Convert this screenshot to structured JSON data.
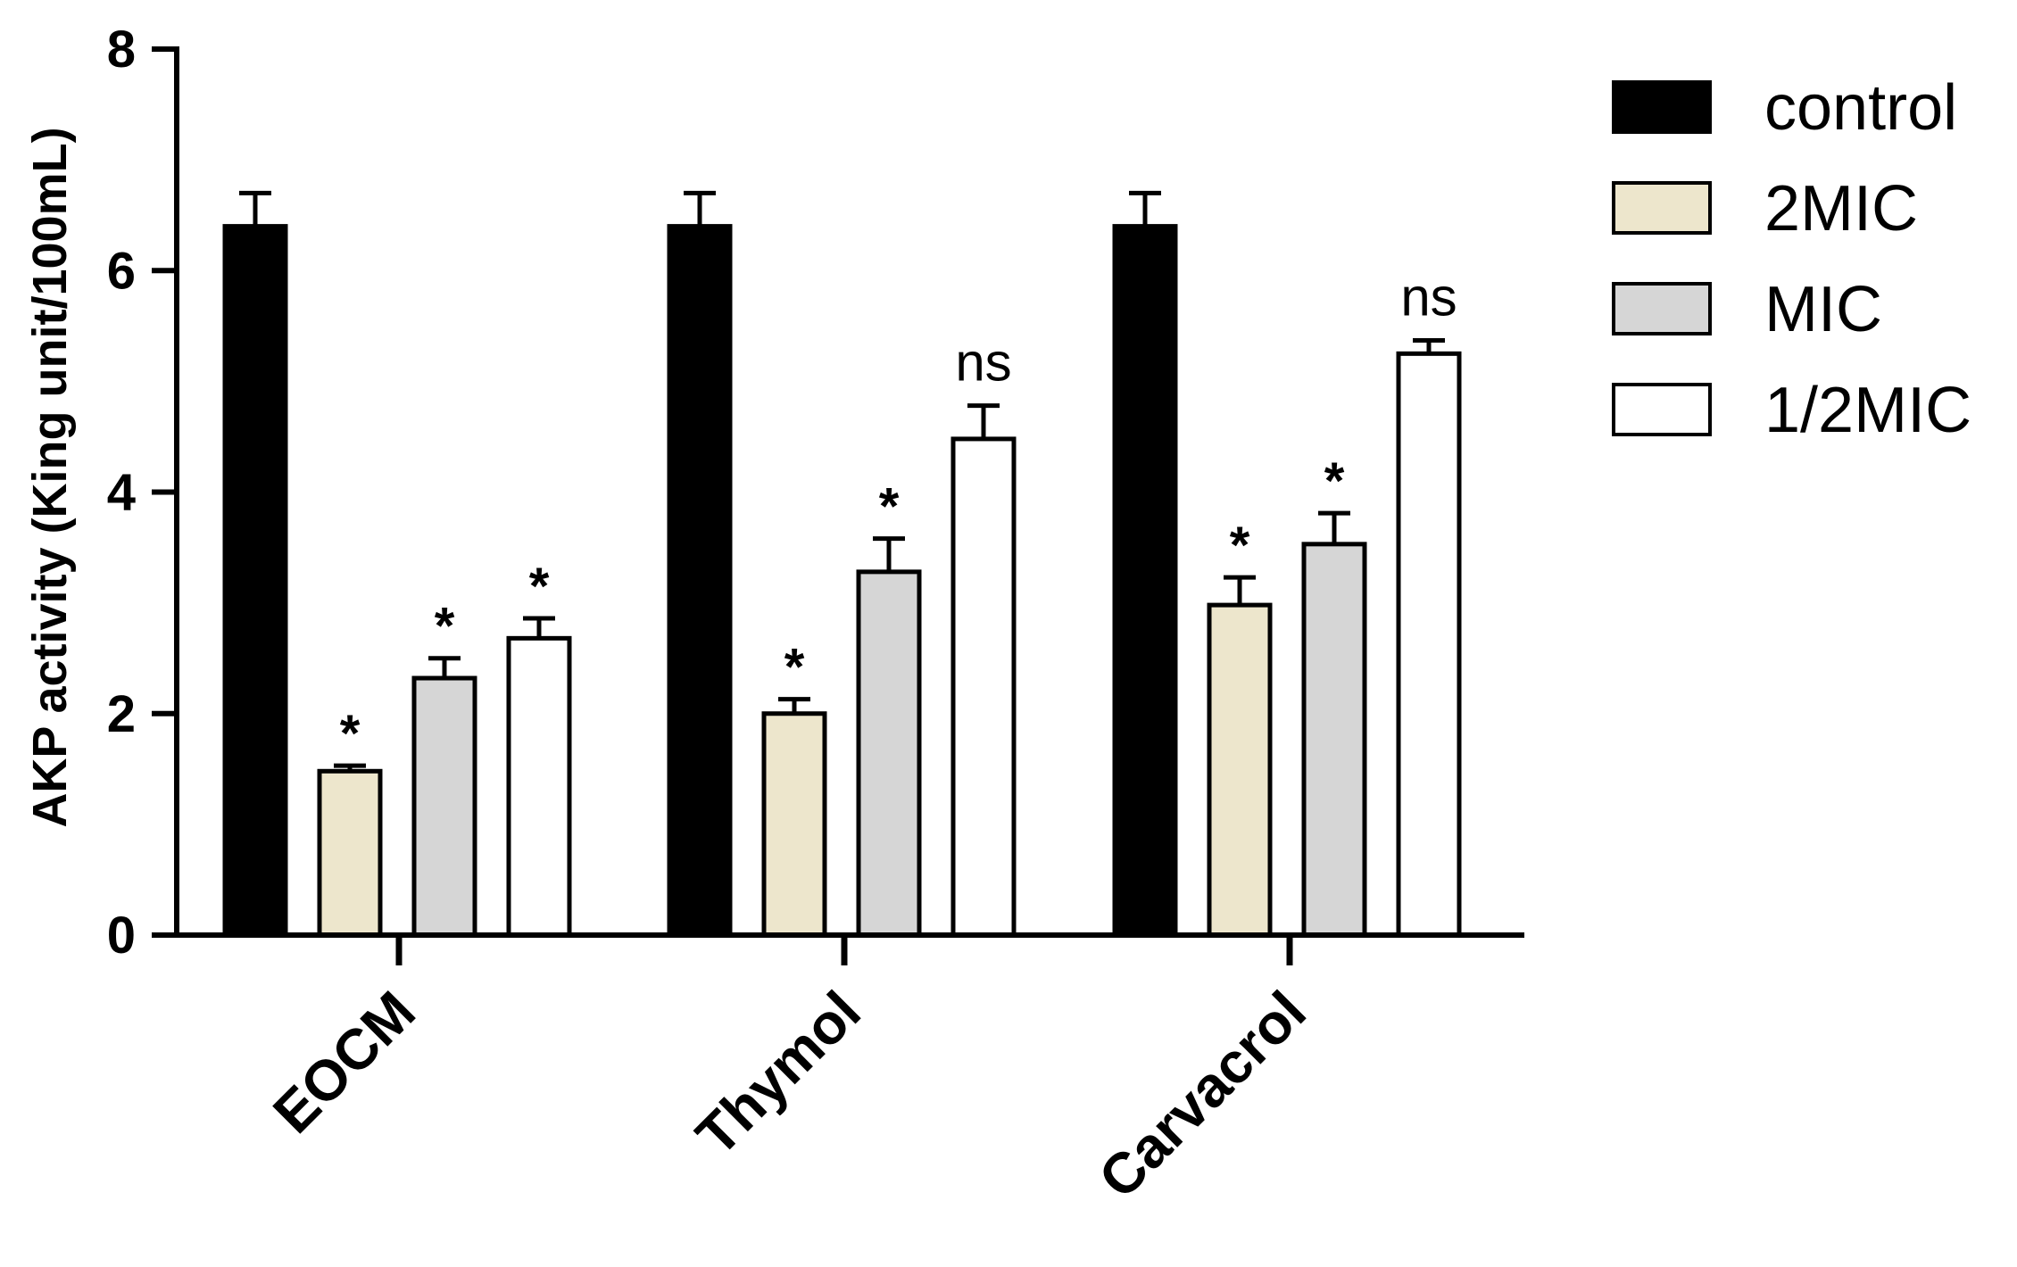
{
  "chart_data": {
    "type": "bar",
    "title": "",
    "xlabel": "",
    "ylabel": "AKP activity (King unit/100mL)",
    "ylim": [
      0,
      8
    ],
    "yticks": [
      "0",
      "2",
      "4",
      "6",
      "8"
    ],
    "categories": [
      "EOCM",
      "Thymol",
      "Carvacrol"
    ],
    "legend_position": "top-right",
    "series": [
      {
        "name": "control",
        "color": "#000000",
        "values": [
          6.4,
          6.4,
          6.4
        ],
        "errors": [
          0.3,
          0.3,
          0.3
        ],
        "annotations": [
          "",
          "",
          ""
        ]
      },
      {
        "name": "2MIC",
        "color": "#ede6cc",
        "values": [
          1.48,
          2.0,
          2.98
        ],
        "errors": [
          0.05,
          0.13,
          0.25
        ],
        "annotations": [
          "*",
          "*",
          "*"
        ]
      },
      {
        "name": "MIC",
        "color": "#d6d6d6",
        "values": [
          2.32,
          3.28,
          3.53
        ],
        "errors": [
          0.18,
          0.3,
          0.28
        ],
        "annotations": [
          "*",
          "*",
          "*"
        ]
      },
      {
        "name": "1/2MIC",
        "color": "#ffffff",
        "values": [
          2.68,
          4.48,
          5.25
        ],
        "errors": [
          0.18,
          0.3,
          0.12
        ],
        "annotations": [
          "*",
          "ns",
          "ns"
        ]
      }
    ]
  }
}
